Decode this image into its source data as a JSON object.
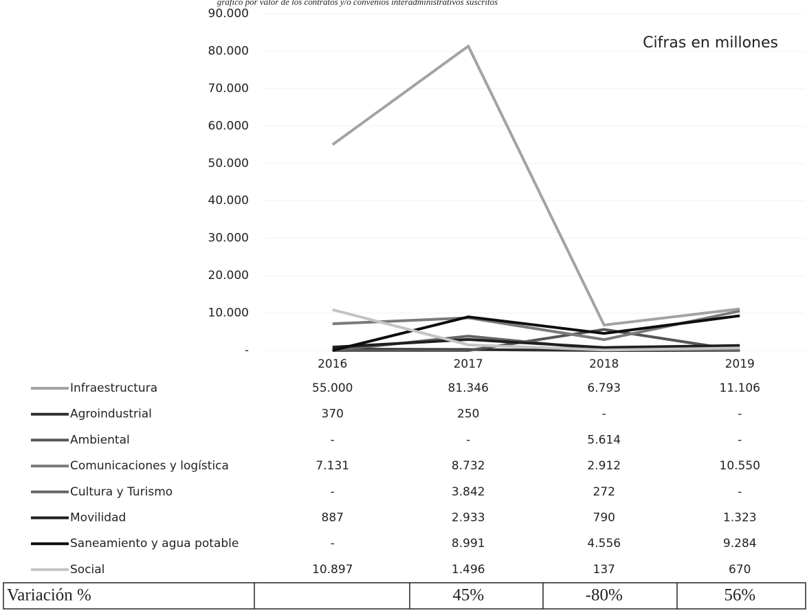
{
  "chart_data": {
    "type": "line",
    "subtitle": "gráfico por valor de los contratos y/o convenios interadministrativos suscritos",
    "annotation": "Cifras en millones",
    "categories": [
      "2016",
      "2017",
      "2018",
      "2019"
    ],
    "ylim": [
      0,
      90000
    ],
    "yticks": [
      {
        "value": 0,
        "label": "-"
      },
      {
        "value": 10000,
        "label": "10.000"
      },
      {
        "value": 20000,
        "label": "20.000"
      },
      {
        "value": 30000,
        "label": "30.000"
      },
      {
        "value": 40000,
        "label": "40.000"
      },
      {
        "value": 50000,
        "label": "50.000"
      },
      {
        "value": 60000,
        "label": "60.000"
      },
      {
        "value": 70000,
        "label": "70.000"
      },
      {
        "value": 80000,
        "label": "80.000"
      },
      {
        "value": 90000,
        "label": "90.000"
      }
    ],
    "series": [
      {
        "name": "Infraestructura",
        "color": "#a3a3a3",
        "values": [
          55000,
          81346,
          6793,
          11106
        ],
        "value_labels": [
          "55.000",
          "81.346",
          "6.793",
          "11.106"
        ]
      },
      {
        "name": "Agroindustrial",
        "color": "#2e2e2e",
        "values": [
          370,
          250,
          0,
          0
        ],
        "value_labels": [
          "370",
          "250",
          "-",
          "-"
        ]
      },
      {
        "name": "Ambiental",
        "color": "#555555",
        "values": [
          0,
          0,
          5614,
          0
        ],
        "value_labels": [
          "-",
          "-",
          "5.614",
          "-"
        ]
      },
      {
        "name": "Comunicaciones y logística",
        "color": "#7a7a7a",
        "values": [
          7131,
          8732,
          2912,
          10550
        ],
        "value_labels": [
          "7.131",
          "8.732",
          "2.912",
          "10.550"
        ]
      },
      {
        "name": "Cultura y Turismo",
        "color": "#666666",
        "values": [
          0,
          3842,
          272,
          0
        ],
        "value_labels": [
          "-",
          "3.842",
          "272",
          "-"
        ]
      },
      {
        "name": "Movilidad",
        "color": "#1f1f1f",
        "values": [
          887,
          2933,
          790,
          1323
        ],
        "value_labels": [
          "887",
          "2.933",
          "790",
          "1.323"
        ]
      },
      {
        "name": "Saneamiento y agua potable",
        "color": "#0d0d0d",
        "values": [
          0,
          8991,
          4556,
          9284
        ],
        "value_labels": [
          "-",
          "8.991",
          "4.556",
          "9.284"
        ]
      },
      {
        "name": "Social",
        "color": "#c4c4c4",
        "values": [
          10897,
          1496,
          137,
          670
        ],
        "value_labels": [
          "10.897",
          "1.496",
          "137",
          "670"
        ]
      }
    ],
    "variation": {
      "label": "Variación %",
      "values": [
        null,
        45,
        -80,
        56
      ],
      "value_labels": [
        null,
        "45%",
        "-80%",
        "56%"
      ]
    }
  }
}
